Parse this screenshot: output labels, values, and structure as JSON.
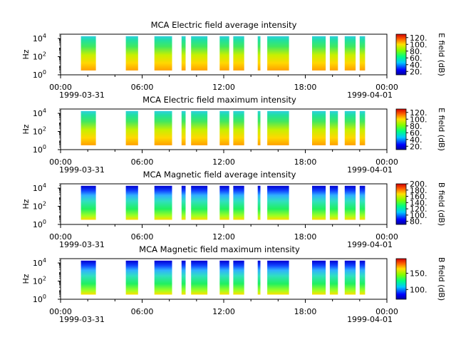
{
  "chart_data": [
    {
      "type": "heatmap",
      "title": "MCA  Electric field average intensity",
      "ylabel": "Hz",
      "yscale": "log",
      "yticks": [
        {
          "exp": "0"
        },
        {
          "exp": "2"
        },
        {
          "exp": "4"
        }
      ],
      "ylim": [
        1,
        30000
      ],
      "x_ticks": [
        "00:00",
        "06:00",
        "12:00",
        "18:00",
        "00:00"
      ],
      "x_dates": [
        "1999-03-31",
        "1999-04-01"
      ],
      "xlim_hours": [
        0,
        24
      ],
      "colorbar": {
        "label": "E field (dB)",
        "ticks": [
          "20.",
          "40.",
          "60.",
          "80.",
          "100.",
          "120."
        ],
        "tick_values": [
          20,
          40,
          60,
          80,
          100,
          120
        ],
        "range": [
          10,
          130
        ]
      },
      "segments_hours": [
        [
          1.5,
          2.6
        ],
        [
          4.8,
          5.7
        ],
        [
          6.9,
          8.2
        ],
        [
          8.9,
          9.2
        ],
        [
          9.6,
          10.8
        ],
        [
          11.7,
          12.4
        ],
        [
          12.7,
          13.5
        ],
        [
          14.5,
          14.7
        ],
        [
          15.2,
          16.8
        ],
        [
          18.5,
          19.5
        ],
        [
          19.8,
          20.4
        ],
        [
          20.9,
          21.7
        ],
        [
          22.0,
          22.4
        ]
      ]
    },
    {
      "type": "heatmap",
      "title": "MCA  Electric field maximum intensity",
      "ylabel": "Hz",
      "yscale": "log",
      "yticks": [
        {
          "exp": "0"
        },
        {
          "exp": "2"
        },
        {
          "exp": "4"
        }
      ],
      "ylim": [
        1,
        30000
      ],
      "x_ticks": [
        "00:00",
        "06:00",
        "12:00",
        "18:00",
        "00:00"
      ],
      "x_dates": [
        "1999-03-31",
        "1999-04-01"
      ],
      "xlim_hours": [
        0,
        24
      ],
      "colorbar": {
        "label": "E field (dB)",
        "ticks": [
          "20.",
          "40.",
          "60.",
          "80.",
          "100.",
          "120."
        ],
        "tick_values": [
          20,
          40,
          60,
          80,
          100,
          120
        ],
        "range": [
          10,
          130
        ]
      },
      "segments_hours": [
        [
          1.5,
          2.6
        ],
        [
          4.8,
          5.7
        ],
        [
          6.9,
          8.2
        ],
        [
          8.9,
          9.2
        ],
        [
          9.6,
          10.8
        ],
        [
          11.7,
          12.4
        ],
        [
          12.7,
          13.5
        ],
        [
          14.5,
          14.7
        ],
        [
          15.2,
          16.8
        ],
        [
          18.5,
          19.5
        ],
        [
          19.8,
          20.4
        ],
        [
          20.9,
          21.7
        ],
        [
          22.0,
          22.4
        ]
      ]
    },
    {
      "type": "heatmap",
      "title": "MCA  Magnetic field average intensity",
      "ylabel": "Hz",
      "yscale": "log",
      "yticks": [
        {
          "exp": "0"
        },
        {
          "exp": "2"
        },
        {
          "exp": "4"
        }
      ],
      "ylim": [
        1,
        30000
      ],
      "x_ticks": [
        "00:00",
        "06:00",
        "12:00",
        "18:00",
        "00:00"
      ],
      "x_dates": [
        "1999-03-31",
        "1999-04-01"
      ],
      "xlim_hours": [
        0,
        24
      ],
      "colorbar": {
        "label": "B field (dB)",
        "ticks": [
          "80.",
          "100.",
          "120.",
          "140.",
          "160.",
          "180.",
          "200."
        ],
        "tick_values": [
          80,
          100,
          120,
          140,
          160,
          180,
          200
        ],
        "range": [
          70,
          200
        ]
      },
      "segments_hours": [
        [
          1.5,
          2.6
        ],
        [
          4.8,
          5.7
        ],
        [
          6.9,
          8.2
        ],
        [
          8.9,
          9.2
        ],
        [
          9.6,
          10.8
        ],
        [
          11.7,
          12.4
        ],
        [
          12.7,
          13.5
        ],
        [
          14.5,
          14.7
        ],
        [
          15.2,
          16.8
        ],
        [
          18.5,
          19.5
        ],
        [
          19.8,
          20.4
        ],
        [
          20.9,
          21.7
        ],
        [
          22.0,
          22.4
        ]
      ]
    },
    {
      "type": "heatmap",
      "title": "MCA  Magnetic field maximum intensity",
      "ylabel": "Hz",
      "yscale": "log",
      "yticks": [
        {
          "exp": "0"
        },
        {
          "exp": "2"
        },
        {
          "exp": "4"
        }
      ],
      "ylim": [
        1,
        30000
      ],
      "x_ticks": [
        "00:00",
        "06:00",
        "12:00",
        "18:00",
        "00:00"
      ],
      "x_dates": [
        "1999-03-31",
        "1999-04-01"
      ],
      "xlim_hours": [
        0,
        24
      ],
      "colorbar": {
        "label": "B field (dB)",
        "ticks": [
          "100.",
          "150."
        ],
        "tick_values": [
          100,
          150
        ],
        "range": [
          70,
          195
        ]
      },
      "segments_hours": [
        [
          1.5,
          2.6
        ],
        [
          4.8,
          5.7
        ],
        [
          6.9,
          8.2
        ],
        [
          8.9,
          9.2
        ],
        [
          9.6,
          10.8
        ],
        [
          11.7,
          12.4
        ],
        [
          12.7,
          13.5
        ],
        [
          14.5,
          14.7
        ],
        [
          15.2,
          16.8
        ],
        [
          18.5,
          19.5
        ],
        [
          19.8,
          20.4
        ],
        [
          20.9,
          21.7
        ],
        [
          22.0,
          22.4
        ]
      ]
    }
  ]
}
